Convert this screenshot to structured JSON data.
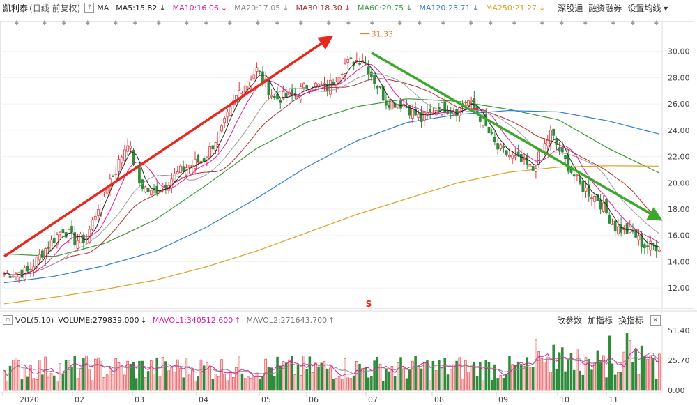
{
  "header": {
    "stock_name": "凯利泰",
    "mode": "(日线 前复权)",
    "help": "?",
    "ma_label": "MA",
    "ma_items": [
      {
        "label": "MA5:15.82",
        "arrow": "↓",
        "color": "#222222"
      },
      {
        "label": "MA10:16.06",
        "arrow": "↓",
        "color": "#e0189b"
      },
      {
        "label": "MA20:17.05",
        "arrow": "↓",
        "color": "#888888"
      },
      {
        "label": "MA30:18.30",
        "arrow": "↓",
        "color": "#b03030"
      },
      {
        "label": "MA60:20.75",
        "arrow": "↓",
        "color": "#3a9a3a"
      },
      {
        "label": "MA120:23.71",
        "arrow": "↓",
        "color": "#2f7fd6"
      },
      {
        "label": "MA250:21.27",
        "arrow": "↓",
        "color": "#e0a020"
      }
    ],
    "buttons": [
      "深股通",
      "融资融券",
      "设置均线"
    ],
    "dropdown_arrow": "▾"
  },
  "volume_header": {
    "indicator": "VOL(5,10)",
    "volume_label": "VOLUME:279839.000",
    "volume_arrow": "↓",
    "mavol1_label": "MAVOL1:340512.600",
    "mavol1_arrow": "↑",
    "mavol2_label": "MAVOL2:271643.700",
    "mavol2_arrow": "↑",
    "buttons": [
      "改参数",
      "加指标",
      "换指标"
    ],
    "close": "✕"
  },
  "chart_data": [
    {
      "type": "candlestick",
      "price_axis_ticks": [
        "30.00",
        "28.00",
        "26.00",
        "24.00",
        "22.00",
        "20.00",
        "18.00",
        "16.00",
        "14.00",
        "12.00"
      ],
      "ylim": [
        11,
        32
      ],
      "peak_label": "31.33",
      "marker_label": "S",
      "x_labels": [
        "2020",
        "02",
        "03",
        "04",
        "05",
        "06",
        "07",
        "08",
        "09",
        "10",
        "11"
      ],
      "close_points": [
        {
          "i": 0,
          "v": 13.1
        },
        {
          "i": 8,
          "v": 13.2
        },
        {
          "i": 14,
          "v": 15.0
        },
        {
          "i": 20,
          "v": 16.5
        },
        {
          "i": 24,
          "v": 15.6
        },
        {
          "i": 28,
          "v": 15.8
        },
        {
          "i": 34,
          "v": 19.5
        },
        {
          "i": 38,
          "v": 21.0
        },
        {
          "i": 42,
          "v": 23.2
        },
        {
          "i": 46,
          "v": 20.0
        },
        {
          "i": 50,
          "v": 19.2
        },
        {
          "i": 56,
          "v": 20.2
        },
        {
          "i": 62,
          "v": 21.2
        },
        {
          "i": 68,
          "v": 21.8
        },
        {
          "i": 74,
          "v": 24.0
        },
        {
          "i": 80,
          "v": 27.0
        },
        {
          "i": 86,
          "v": 28.6
        },
        {
          "i": 92,
          "v": 26.4
        },
        {
          "i": 98,
          "v": 26.6
        },
        {
          "i": 104,
          "v": 27.5
        },
        {
          "i": 110,
          "v": 27.2
        },
        {
          "i": 116,
          "v": 29.0
        },
        {
          "i": 122,
          "v": 29.5
        },
        {
          "i": 126,
          "v": 27.8
        },
        {
          "i": 130,
          "v": 26.2
        },
        {
          "i": 136,
          "v": 26.0
        },
        {
          "i": 142,
          "v": 24.8
        },
        {
          "i": 148,
          "v": 25.8
        },
        {
          "i": 154,
          "v": 25.5
        },
        {
          "i": 158,
          "v": 26.2
        },
        {
          "i": 162,
          "v": 25.0
        },
        {
          "i": 168,
          "v": 22.6
        },
        {
          "i": 174,
          "v": 21.8
        },
        {
          "i": 180,
          "v": 21.0
        },
        {
          "i": 186,
          "v": 23.8
        },
        {
          "i": 190,
          "v": 22.0
        },
        {
          "i": 196,
          "v": 19.8
        },
        {
          "i": 202,
          "v": 18.8
        },
        {
          "i": 208,
          "v": 16.6
        },
        {
          "i": 214,
          "v": 16.2
        },
        {
          "i": 218,
          "v": 15.2
        }
      ],
      "moving_averages": [
        {
          "name": "MA60",
          "color": "#3a9a3a",
          "values": [
            14.6,
            14.4,
            15.4,
            17.2,
            19.8,
            22.6,
            24.6,
            25.8,
            26.4,
            26.2,
            25.6,
            24.8,
            22.6,
            20.75
          ]
        },
        {
          "name": "MA120",
          "color": "#2f7fd6",
          "values": [
            12.4,
            12.9,
            13.7,
            14.8,
            16.6,
            18.8,
            21.2,
            23.2,
            24.6,
            25.2,
            25.5,
            25.4,
            24.7,
            23.71
          ]
        },
        {
          "name": "MA250",
          "color": "#e0a020",
          "values": [
            10.8,
            11.3,
            11.9,
            12.6,
            13.6,
            14.8,
            16.2,
            17.6,
            18.8,
            20.0,
            20.8,
            21.2,
            21.3,
            21.27
          ]
        }
      ],
      "trend_up": {
        "from": [
          0,
          14.4
        ],
        "to": [
          110,
          30.9
        ],
        "color": "#e8281c"
      },
      "trend_down": {
        "from": [
          125,
          29.9
        ],
        "to": [
          222,
          17.4
        ],
        "color": "#3aa82a"
      }
    },
    {
      "type": "bar",
      "name": "VOL",
      "vol_axis_ticks": [
        "51.40",
        "25.70",
        "0.00"
      ],
      "ylim": [
        0,
        55
      ]
    }
  ]
}
